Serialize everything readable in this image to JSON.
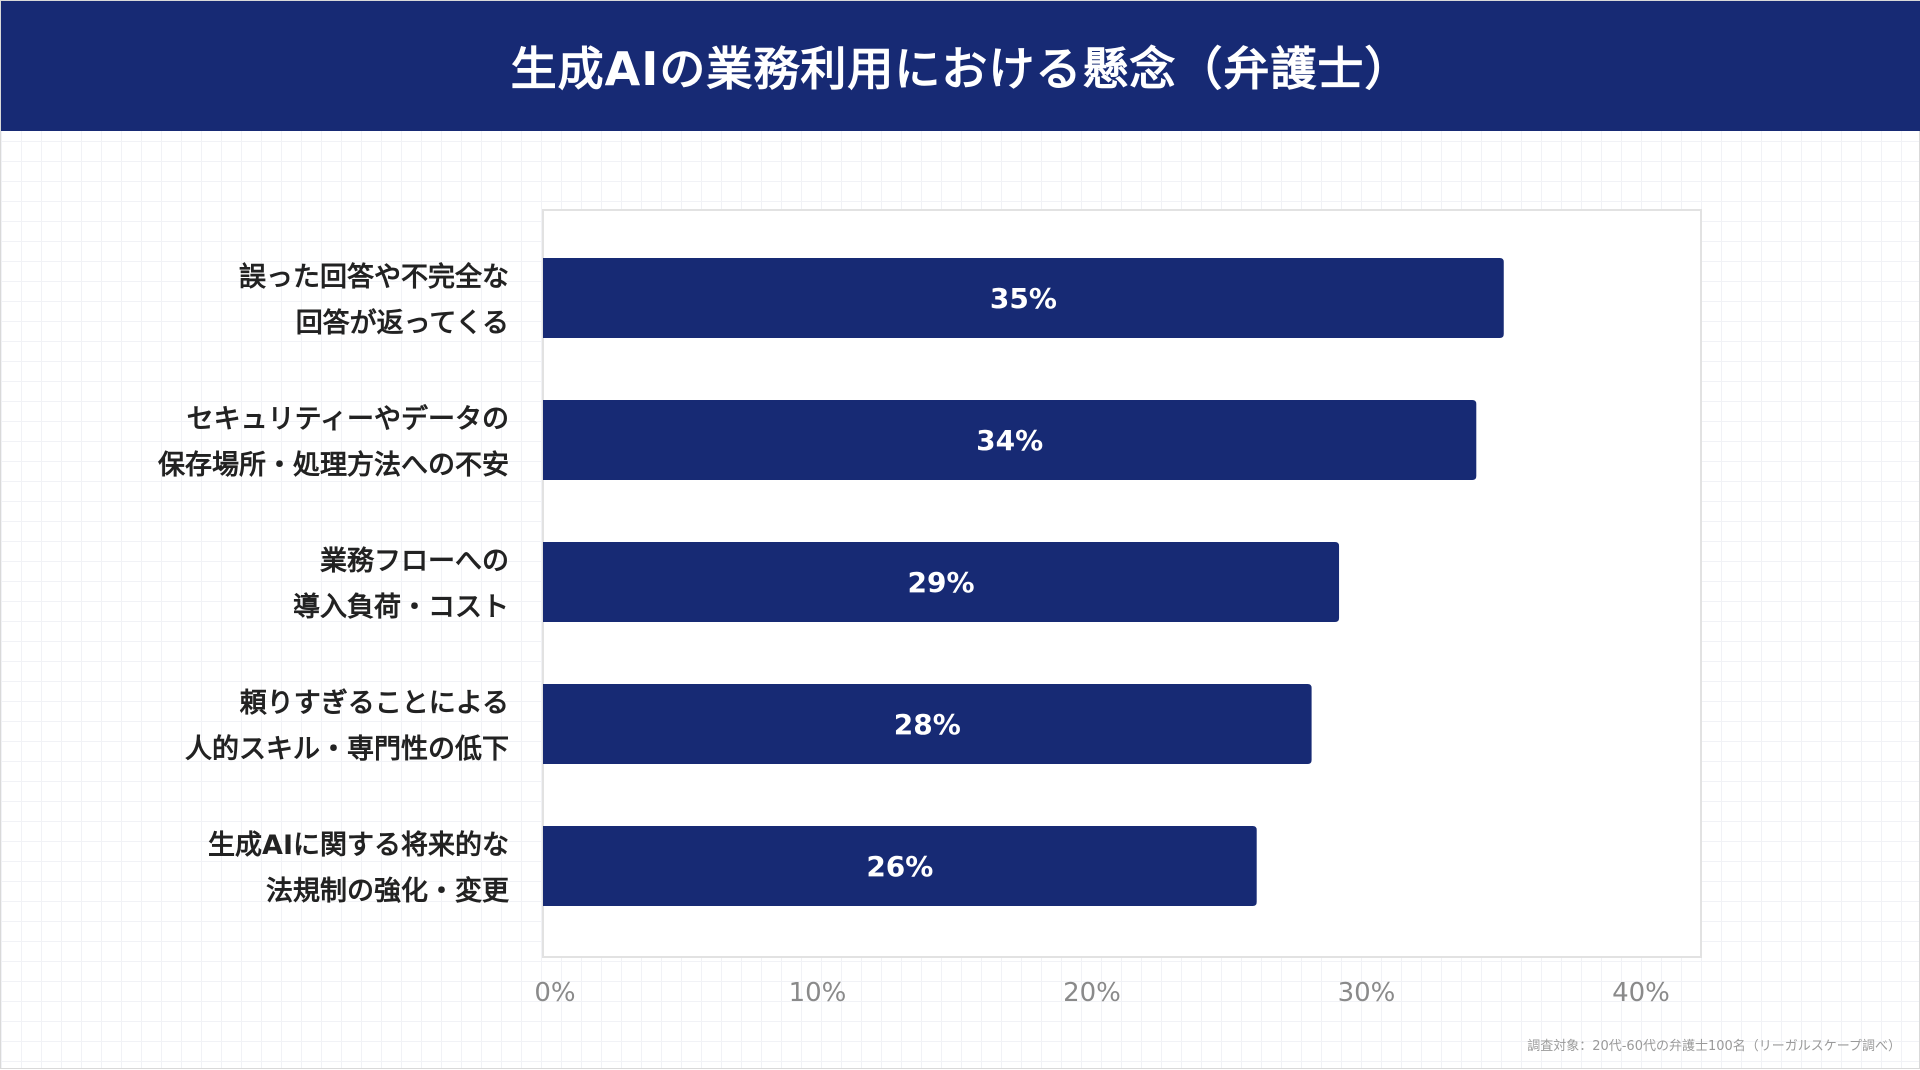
{
  "title": "生成AIの業務利用における懸念（弁護士）",
  "footnote": "調査対象：20代-60代の弁護士100名（リーガルスケープ調べ）",
  "colors": {
    "header": "#172a74",
    "bar": "#172a74",
    "bar_label": "#ffffff"
  },
  "chart_data": {
    "type": "bar",
    "orientation": "horizontal",
    "categories": [
      [
        "誤った回答や不完全な",
        "回答が返ってくる"
      ],
      [
        "セキュリティーやデータの",
        "保存場所・処理方法への不安"
      ],
      [
        "業務フローへの",
        "導入負荷・コスト"
      ],
      [
        "頼りすぎることによる",
        "人的スキル・専門性の低下"
      ],
      [
        "生成AIに関する将来的な",
        "法規制の強化・変更"
      ]
    ],
    "values": [
      35,
      34,
      29,
      28,
      26
    ],
    "data_labels": [
      "35%",
      "34%",
      "29%",
      "28%",
      "26%"
    ],
    "xlim": [
      0,
      42
    ],
    "xticks": [
      0,
      10,
      20,
      30,
      40
    ],
    "xtick_labels": [
      "0%",
      "10%",
      "20%",
      "30%",
      "40%"
    ],
    "grid": false,
    "legend": "none"
  }
}
